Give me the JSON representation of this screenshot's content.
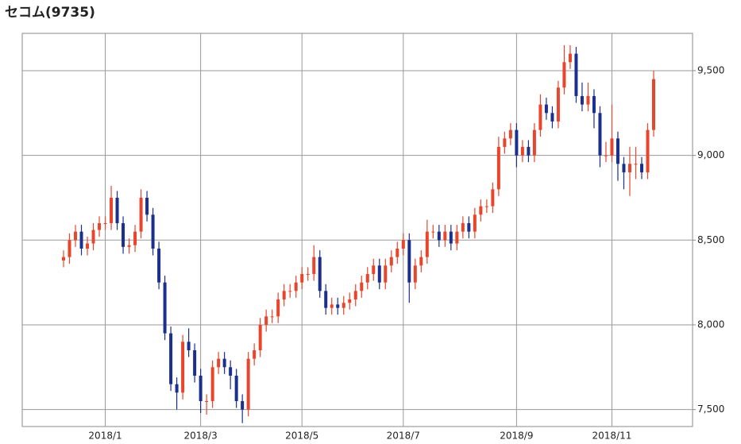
{
  "chart_data": {
    "type": "candlestick",
    "title": "セコム(9735)",
    "categories": [
      null,
      null,
      null,
      null,
      null,
      null,
      null,
      "2018/1",
      null,
      null,
      null,
      null,
      null,
      null,
      null,
      null,
      null,
      null,
      null,
      null,
      null,
      null,
      null,
      "2018/3",
      null,
      null,
      null,
      null,
      null,
      null,
      null,
      null,
      null,
      null,
      null,
      null,
      null,
      null,
      null,
      null,
      "2018/5",
      null,
      null,
      null,
      null,
      null,
      null,
      null,
      null,
      null,
      null,
      null,
      null,
      null,
      null,
      null,
      null,
      "2018/7",
      null,
      null,
      null,
      null,
      null,
      null,
      null,
      null,
      null,
      null,
      null,
      null,
      null,
      null,
      null,
      null,
      null,
      null,
      "2018/9",
      null,
      null,
      null,
      null,
      null,
      null,
      null,
      null,
      null,
      null,
      null,
      null,
      null,
      null,
      null,
      "2018/11",
      null,
      null,
      null,
      null,
      null,
      null,
      null
    ],
    "open": [
      8380,
      8400,
      8500,
      8550,
      8450,
      8480,
      8560,
      8600,
      8600,
      8750,
      8600,
      8460,
      8470,
      8550,
      8750,
      8650,
      8450,
      8250,
      7950,
      7650,
      7600,
      7900,
      7850,
      7700,
      7550,
      7550,
      7750,
      7800,
      7750,
      7700,
      7550,
      7500,
      7800,
      7850,
      8000,
      8050,
      8050,
      8150,
      8200,
      8200,
      8250,
      8300,
      8300,
      8400,
      8200,
      8100,
      8120,
      8100,
      8130,
      8150,
      8200,
      8250,
      8300,
      8350,
      8250,
      8350,
      8400,
      8450,
      8500,
      8250,
      8350,
      8400,
      8550,
      8550,
      8500,
      8550,
      8480,
      8550,
      8600,
      8550,
      8650,
      8700,
      8700,
      8800,
      9050,
      9100,
      9150,
      9000,
      9050,
      9000,
      9150,
      9300,
      9250,
      9200,
      9400,
      9550,
      9600,
      9350,
      9300,
      9350,
      9250,
      9000,
      9000,
      9100,
      8950,
      8900,
      8950,
      8950,
      8900,
      9150
    ],
    "high": [
      8440,
      8540,
      8590,
      8590,
      8520,
      8600,
      8640,
      8640,
      8820,
      8790,
      8640,
      8510,
      8590,
      8800,
      8790,
      8690,
      8490,
      8290,
      7990,
      7690,
      7940,
      7980,
      7890,
      7740,
      7590,
      7790,
      7840,
      7840,
      7790,
      7740,
      7590,
      7840,
      7890,
      8040,
      8090,
      8090,
      8190,
      8240,
      8240,
      8290,
      8340,
      8340,
      8470,
      8440,
      8240,
      8160,
      8160,
      8170,
      8190,
      8240,
      8290,
      8340,
      8390,
      8390,
      8390,
      8440,
      8490,
      8540,
      8540,
      8390,
      8440,
      8620,
      8590,
      8590,
      8590,
      8590,
      8590,
      8640,
      8640,
      8690,
      8740,
      8740,
      8840,
      9110,
      9140,
      9190,
      9190,
      9090,
      9090,
      9190,
      9360,
      9340,
      9290,
      9440,
      9650,
      9650,
      9640,
      9430,
      9430,
      9390,
      9290,
      9080,
      9300,
      9140,
      8990,
      9050,
      9050,
      8990,
      9190,
      9500
    ],
    "low": [
      8340,
      8360,
      8460,
      8410,
      8410,
      8440,
      8520,
      8560,
      8560,
      8560,
      8420,
      8420,
      8430,
      8510,
      8610,
      8410,
      8210,
      7910,
      7610,
      7500,
      7560,
      7810,
      7660,
      7480,
      7470,
      7510,
      7710,
      7710,
      7620,
      7510,
      7420,
      7460,
      7760,
      7810,
      7960,
      8010,
      8010,
      8110,
      8160,
      8160,
      8210,
      8260,
      8260,
      8160,
      8060,
      8060,
      8060,
      8060,
      8090,
      8110,
      8160,
      8210,
      8260,
      8210,
      8210,
      8310,
      8360,
      8410,
      8130,
      8210,
      8310,
      8360,
      8510,
      8460,
      8460,
      8440,
      8440,
      8510,
      8510,
      8510,
      8610,
      8660,
      8660,
      8760,
      9010,
      9060,
      8930,
      8960,
      8960,
      8960,
      9110,
      9210,
      9160,
      9160,
      9360,
      9510,
      9310,
      9260,
      9260,
      9160,
      8930,
      8960,
      8960,
      8850,
      8800,
      8760,
      8860,
      8860,
      8860,
      9110
    ],
    "close": [
      8400,
      8500,
      8550,
      8450,
      8480,
      8560,
      8600,
      8600,
      8750,
      8600,
      8460,
      8470,
      8550,
      8750,
      8650,
      8450,
      8250,
      7950,
      7650,
      7600,
      7900,
      7850,
      7700,
      7550,
      7550,
      7750,
      7800,
      7750,
      7700,
      7550,
      7500,
      7800,
      7850,
      8000,
      8050,
      8050,
      8150,
      8200,
      8200,
      8250,
      8300,
      8300,
      8400,
      8200,
      8100,
      8120,
      8100,
      8130,
      8150,
      8200,
      8250,
      8300,
      8350,
      8250,
      8350,
      8400,
      8450,
      8500,
      8250,
      8350,
      8400,
      8550,
      8550,
      8500,
      8550,
      8480,
      8550,
      8600,
      8550,
      8650,
      8700,
      8700,
      8800,
      9050,
      9100,
      9150,
      9000,
      9050,
      9000,
      9150,
      9300,
      9250,
      9200,
      9400,
      9550,
      9600,
      9350,
      9300,
      9350,
      9250,
      9000,
      9000,
      9100,
      8950,
      8900,
      8950,
      8950,
      8900,
      9150,
      9450
    ],
    "up_color": "#e8452c",
    "down_color": "#1b2f8e",
    "ylim": [
      7400,
      9720
    ],
    "yticks": [
      {
        "value": 7500,
        "label": "7,500"
      },
      {
        "value": 8000,
        "label": "8,000"
      },
      {
        "value": 8500,
        "label": "8,500"
      },
      {
        "value": 9000,
        "label": "9,000"
      },
      {
        "value": 9500,
        "label": "9,500"
      }
    ],
    "grid": true
  }
}
